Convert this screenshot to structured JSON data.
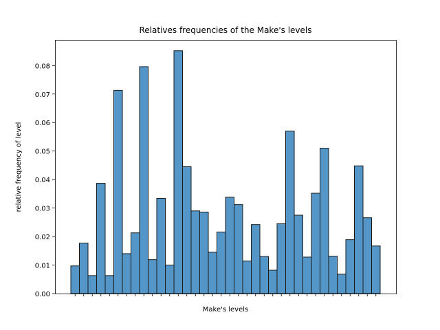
{
  "chart_data": {
    "type": "bar",
    "title": "Relatives frequencies of the Make's levels",
    "xlabel": "Make's levels",
    "ylabel": "relative frequency of level",
    "ylim": [
      0,
      0.089
    ],
    "yticks": [
      "0.00",
      "0.01",
      "0.02",
      "0.03",
      "0.04",
      "0.05",
      "0.06",
      "0.07",
      "0.08"
    ],
    "grid": false,
    "bar_color": "#5496c8",
    "edge_color": "#1a1a1a",
    "values": [
      0.0097,
      0.0177,
      0.0063,
      0.0387,
      0.0063,
      0.0713,
      0.014,
      0.0213,
      0.0796,
      0.0119,
      0.0334,
      0.01,
      0.0852,
      0.0445,
      0.029,
      0.0286,
      0.0145,
      0.0216,
      0.0338,
      0.0312,
      0.0114,
      0.0242,
      0.013,
      0.0082,
      0.0245,
      0.057,
      0.0275,
      0.0128,
      0.0352,
      0.051,
      0.0131,
      0.0068,
      0.0189,
      0.0448,
      0.0266,
      0.0167
    ]
  }
}
